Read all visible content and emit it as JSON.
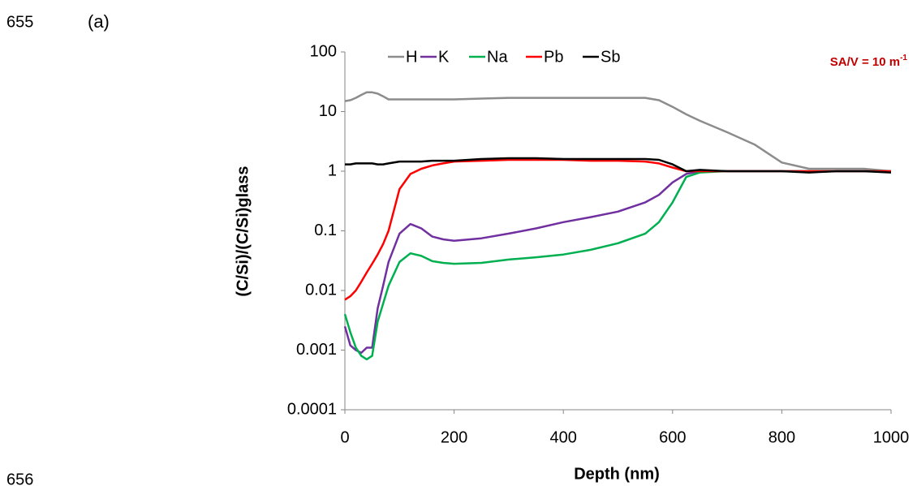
{
  "page_labels": {
    "line_top": "655",
    "panel": "(a)",
    "line_bottom": "656"
  },
  "chart_data": {
    "type": "line",
    "ylabel": "(C/Si)/(C/Si)glass",
    "xlabel": "Depth (nm)",
    "annotation": {
      "text": "SA/V = 10 m",
      "sup": "-1",
      "color": "#c00000"
    },
    "legend": "top",
    "yscale": "log",
    "xlim": [
      0,
      1000
    ],
    "xticks": [
      0,
      200,
      400,
      600,
      800,
      1000
    ],
    "ylim": [
      0.0001,
      100
    ],
    "yticks": [
      100,
      10,
      1,
      0.1,
      0.01,
      0.001,
      0.0001
    ],
    "x": [
      0,
      10,
      20,
      30,
      40,
      50,
      60,
      70,
      80,
      100,
      120,
      140,
      160,
      180,
      200,
      250,
      300,
      350,
      400,
      450,
      500,
      550,
      575,
      600,
      625,
      650,
      700,
      750,
      800,
      850,
      900,
      950,
      1000
    ],
    "series": [
      {
        "name": "H",
        "color": "#8c8c8c",
        "values": [
          15,
          15.5,
          17,
          19,
          21,
          21,
          20,
          18,
          16,
          16,
          16,
          16,
          16,
          16,
          16,
          16.5,
          17,
          17,
          17,
          17,
          17,
          17,
          15.5,
          12,
          9,
          7,
          4.5,
          2.8,
          1.4,
          1.1,
          1.1,
          1.1,
          1.0
        ]
      },
      {
        "name": "K",
        "color": "#7030a0",
        "values": [
          0.0025,
          0.0012,
          0.001,
          0.0009,
          0.0011,
          0.0011,
          0.005,
          0.012,
          0.03,
          0.09,
          0.13,
          0.11,
          0.08,
          0.072,
          0.068,
          0.075,
          0.09,
          0.11,
          0.14,
          0.17,
          0.21,
          0.3,
          0.4,
          0.65,
          0.9,
          1.0,
          1.0,
          1.0,
          1.0,
          1.0,
          1.0,
          1.0,
          1.0
        ]
      },
      {
        "name": "Na",
        "color": "#00b050",
        "values": [
          0.004,
          0.002,
          0.0011,
          0.0008,
          0.0007,
          0.0008,
          0.003,
          0.006,
          0.012,
          0.03,
          0.042,
          0.038,
          0.031,
          0.029,
          0.028,
          0.029,
          0.033,
          0.036,
          0.04,
          0.048,
          0.062,
          0.09,
          0.14,
          0.3,
          0.8,
          0.95,
          1.0,
          1.0,
          1.0,
          1.0,
          1.0,
          1.0,
          1.0
        ]
      },
      {
        "name": "Pb",
        "color": "#ff0000",
        "values": [
          0.007,
          0.008,
          0.01,
          0.014,
          0.02,
          0.028,
          0.04,
          0.06,
          0.1,
          0.5,
          0.9,
          1.1,
          1.25,
          1.35,
          1.45,
          1.5,
          1.55,
          1.55,
          1.55,
          1.5,
          1.5,
          1.45,
          1.35,
          1.15,
          1.0,
          1.0,
          1.0,
          1.0,
          1.0,
          1.0,
          1.0,
          1.0,
          1.0
        ]
      },
      {
        "name": "Sb",
        "color": "#000000",
        "values": [
          1.3,
          1.3,
          1.35,
          1.35,
          1.35,
          1.35,
          1.3,
          1.3,
          1.35,
          1.45,
          1.45,
          1.45,
          1.5,
          1.5,
          1.5,
          1.6,
          1.65,
          1.65,
          1.6,
          1.6,
          1.6,
          1.6,
          1.55,
          1.3,
          1.0,
          1.05,
          1.0,
          1.0,
          1.0,
          0.95,
          1.0,
          1.0,
          0.95
        ]
      }
    ]
  }
}
